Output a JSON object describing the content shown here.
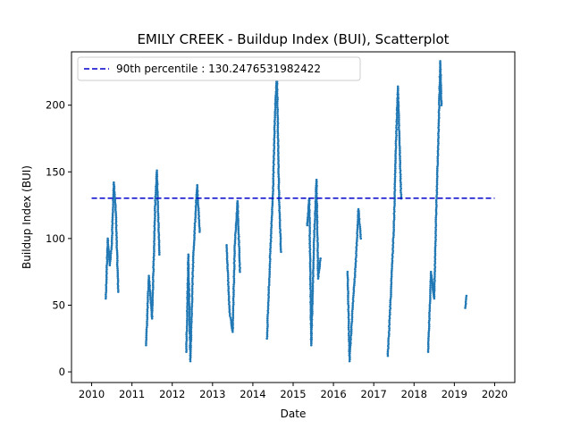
{
  "chart_data": {
    "type": "scatter",
    "title": "EMILY CREEK - Buildup Index (BUI), Scatterplot",
    "xlabel": "Date",
    "ylabel": "Buildup Index (BUI)",
    "xlim": [
      2009.5,
      2020.5
    ],
    "ylim": [
      -8,
      240
    ],
    "x_ticks": [
      2010,
      2011,
      2012,
      2013,
      2014,
      2015,
      2016,
      2017,
      2018,
      2019,
      2020
    ],
    "y_ticks": [
      0,
      50,
      100,
      150,
      200
    ],
    "grid": false,
    "legend_position": "top-left",
    "reference_line": {
      "label": "90th percentile : 130.2476531982422",
      "value": 130.2476531982422,
      "x_range": [
        2010,
        2020
      ],
      "color": "#0000cc",
      "style": "dashed"
    },
    "series": [
      {
        "color": "#1f77b4",
        "seasons": [
          {
            "year": 2010,
            "start": 2010.35,
            "end": 2010.66,
            "points": [
              [
                2010.35,
                55
              ],
              [
                2010.4,
                100
              ],
              [
                2010.45,
                80
              ],
              [
                2010.5,
                95
              ],
              [
                2010.55,
                142
              ],
              [
                2010.6,
                120
              ],
              [
                2010.66,
                60
              ]
            ]
          },
          {
            "year": 2011,
            "start": 2011.35,
            "end": 2011.68,
            "points": [
              [
                2011.35,
                20
              ],
              [
                2011.42,
                72
              ],
              [
                2011.5,
                40
              ],
              [
                2011.58,
                130
              ],
              [
                2011.62,
                151
              ],
              [
                2011.68,
                88
              ]
            ]
          },
          {
            "year": 2012,
            "start": 2012.35,
            "end": 2012.68,
            "points": [
              [
                2012.35,
                15
              ],
              [
                2012.4,
                88
              ],
              [
                2012.45,
                8
              ],
              [
                2012.52,
                85
              ],
              [
                2012.58,
                120
              ],
              [
                2012.62,
                140
              ],
              [
                2012.68,
                105
              ]
            ]
          },
          {
            "year": 2013,
            "start": 2013.35,
            "end": 2013.68,
            "points": [
              [
                2013.35,
                95
              ],
              [
                2013.42,
                45
              ],
              [
                2013.5,
                30
              ],
              [
                2013.55,
                95
              ],
              [
                2013.62,
                128
              ],
              [
                2013.68,
                75
              ]
            ]
          },
          {
            "year": 2014,
            "start": 2014.35,
            "end": 2014.7,
            "points": [
              [
                2014.35,
                25
              ],
              [
                2014.42,
                80
              ],
              [
                2014.5,
                135
              ],
              [
                2014.55,
                195
              ],
              [
                2014.6,
                222
              ],
              [
                2014.65,
                130
              ],
              [
                2014.7,
                90
              ]
            ]
          },
          {
            "year": 2015,
            "start": 2015.35,
            "end": 2015.68,
            "points": [
              [
                2015.35,
                110
              ],
              [
                2015.4,
                130
              ],
              [
                2015.45,
                20
              ],
              [
                2015.52,
                100
              ],
              [
                2015.58,
                144
              ],
              [
                2015.62,
                70
              ],
              [
                2015.68,
                85
              ]
            ]
          },
          {
            "year": 2016,
            "start": 2016.35,
            "end": 2016.68,
            "points": [
              [
                2016.35,
                75
              ],
              [
                2016.4,
                8
              ],
              [
                2016.48,
                50
              ],
              [
                2016.55,
                80
              ],
              [
                2016.62,
                122
              ],
              [
                2016.68,
                100
              ]
            ]
          },
          {
            "year": 2017,
            "start": 2017.35,
            "end": 2017.68,
            "points": [
              [
                2017.35,
                12
              ],
              [
                2017.42,
                55
              ],
              [
                2017.5,
                110
              ],
              [
                2017.55,
                170
              ],
              [
                2017.6,
                214
              ],
              [
                2017.65,
                160
              ],
              [
                2017.68,
                130
              ]
            ]
          },
          {
            "year": 2018,
            "start": 2018.35,
            "end": 2018.68,
            "points": [
              [
                2018.35,
                15
              ],
              [
                2018.42,
                75
              ],
              [
                2018.5,
                55
              ],
              [
                2018.55,
                120
              ],
              [
                2018.6,
                170
              ],
              [
                2018.65,
                233
              ],
              [
                2018.68,
                200
              ]
            ]
          },
          {
            "year": 2019,
            "start": 2019.27,
            "end": 2019.3,
            "points": [
              [
                2019.27,
                48
              ],
              [
                2019.3,
                57
              ]
            ]
          }
        ]
      }
    ]
  },
  "colors": {
    "points": "#1f77b4",
    "reference_line": "#0000cc",
    "axes": "#000000",
    "legend_border": "#cccccc"
  }
}
